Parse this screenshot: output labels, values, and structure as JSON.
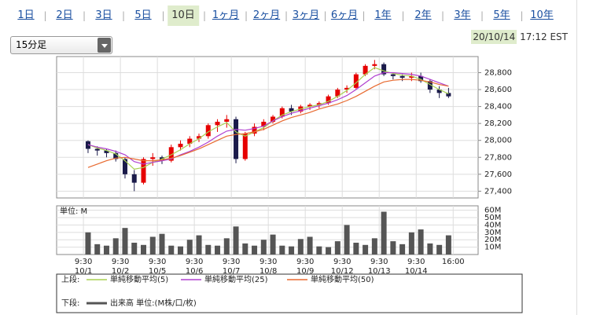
{
  "tabs": [
    "1日",
    "2日",
    "3日",
    "5日",
    "10日",
    "1ヶ月",
    "2ヶ月",
    "3ヶ月",
    "6ヶ月",
    "1年",
    "2年",
    "3年",
    "5年",
    "10年"
  ],
  "selected_tab": 4,
  "interval": "15分足",
  "timestamp_date": "20/10/14",
  "timestamp_time": "17:12 EST",
  "chart_data": [
    {
      "type": "candlestick",
      "ohlc": [
        [
          27990,
          28000,
          27850,
          27900
        ],
        [
          27900,
          27930,
          27820,
          27880
        ],
        [
          27880,
          27900,
          27800,
          27850
        ],
        [
          27850,
          27880,
          27750,
          27780
        ],
        [
          27780,
          27800,
          27550,
          27600
        ],
        [
          27600,
          27650,
          27400,
          27500
        ],
        [
          27500,
          27800,
          27480,
          27780
        ],
        [
          27780,
          27850,
          27700,
          27800
        ],
        [
          27800,
          27820,
          27720,
          27760
        ],
        [
          27760,
          27950,
          27740,
          27920
        ],
        [
          27920,
          28000,
          27880,
          27960
        ],
        [
          27960,
          28050,
          27920,
          28020
        ],
        [
          28020,
          28080,
          27980,
          28050
        ],
        [
          28050,
          28200,
          28020,
          28180
        ],
        [
          28180,
          28250,
          28100,
          28220
        ],
        [
          28220,
          28300,
          28150,
          28250
        ],
        [
          28250,
          28280,
          27730,
          27780
        ],
        [
          27780,
          28100,
          27760,
          28080
        ],
        [
          28080,
          28200,
          28050,
          28160
        ],
        [
          28160,
          28250,
          28120,
          28220
        ],
        [
          28220,
          28300,
          28200,
          28280
        ],
        [
          28280,
          28400,
          28260,
          28380
        ],
        [
          28380,
          28420,
          28300,
          28340
        ],
        [
          28340,
          28420,
          28320,
          28400
        ],
        [
          28400,
          28440,
          28360,
          28420
        ],
        [
          28420,
          28460,
          28380,
          28440
        ],
        [
          28440,
          28540,
          28420,
          28520
        ],
        [
          28520,
          28620,
          28500,
          28600
        ],
        [
          28600,
          28650,
          28560,
          28620
        ],
        [
          28620,
          28800,
          28600,
          28780
        ],
        [
          28780,
          28900,
          28760,
          28880
        ],
        [
          28880,
          28950,
          28840,
          28900
        ],
        [
          28900,
          28920,
          28760,
          28780
        ],
        [
          28780,
          28800,
          28720,
          28760
        ],
        [
          28760,
          28780,
          28700,
          28740
        ],
        [
          28740,
          28800,
          28700,
          28760
        ],
        [
          28760,
          28800,
          28680,
          28700
        ],
        [
          28700,
          28720,
          28560,
          28600
        ],
        [
          28600,
          28640,
          28500,
          28560
        ],
        [
          28560,
          28620,
          28500,
          28520
        ]
      ],
      "up_color": "#e60000",
      "down_color": "#1a1a4a",
      "series": [
        {
          "name": "単純移動平均(5)",
          "color": "#a8d050",
          "values": [
            27950,
            27910,
            27880,
            27840,
            27760,
            27660,
            27680,
            27740,
            27780,
            27830,
            27890,
            27960,
            28020,
            28100,
            28160,
            28210,
            28100,
            28050,
            28100,
            28150,
            28230,
            28300,
            28340,
            28370,
            28400,
            28420,
            28460,
            28520,
            28590,
            28680,
            28780,
            28860,
            28820,
            28790,
            28770,
            28760,
            28720,
            28660,
            28600,
            28550
          ]
        },
        {
          "name": "単純移動平均(25)",
          "color": "#b040d0",
          "values": [
            27950,
            27920,
            27900,
            27870,
            27830,
            27750,
            27720,
            27740,
            27760,
            27780,
            27830,
            27870,
            27920,
            27980,
            28050,
            28110,
            28130,
            28120,
            28140,
            28170,
            28230,
            28280,
            28320,
            28350,
            28380,
            28410,
            28440,
            28480,
            28530,
            28600,
            28680,
            28760,
            28800,
            28800,
            28790,
            28780,
            28760,
            28720,
            28680,
            28640
          ]
        },
        {
          "name": "単純移動平均(50)",
          "color": "#e86a30",
          "values": [
            27680,
            27720,
            27760,
            27790,
            27800,
            27780,
            27760,
            27760,
            27770,
            27790,
            27820,
            27860,
            27900,
            27950,
            28000,
            28050,
            28070,
            28080,
            28100,
            28130,
            28180,
            28230,
            28270,
            28300,
            28330,
            28370,
            28400,
            28430,
            28470,
            28520,
            28580,
            28640,
            28690,
            28710,
            28720,
            28720,
            28710,
            28690,
            28660,
            28640
          ]
        }
      ],
      "ylim": [
        27320,
        28990
      ],
      "yticks": [
        {
          "value": 27400,
          "label": "27,400"
        },
        {
          "value": 27600,
          "label": "27,600"
        },
        {
          "value": 27800,
          "label": "27,800"
        },
        {
          "value": 28000,
          "label": "28,000"
        },
        {
          "value": 28200,
          "label": "28,200"
        },
        {
          "value": 28400,
          "label": "28,400"
        },
        {
          "value": 28600,
          "label": "28,600"
        },
        {
          "value": 28800,
          "label": "28,800"
        }
      ],
      "xlim": [
        -2.9,
        42.7
      ],
      "xticks": [
        {
          "value": 0,
          "label": "9:30"
        },
        {
          "value": 4,
          "label": "9:30"
        },
        {
          "value": 8,
          "label": "9:30"
        },
        {
          "value": 12,
          "label": "9:30"
        },
        {
          "value": 16,
          "label": "9:30"
        },
        {
          "value": 20,
          "label": "9:30"
        },
        {
          "value": 24,
          "label": "9:30"
        },
        {
          "value": 28,
          "label": "9:30"
        },
        {
          "value": 32,
          "label": "9:30"
        },
        {
          "value": 36,
          "label": "9:30"
        },
        {
          "value": 40,
          "label": "16:00"
        }
      ],
      "xtick_dates": [
        "10/1",
        "10/2",
        "10/5",
        "10/6",
        "10/7",
        "10/8",
        "10/9",
        "10/12",
        "10/13",
        "10/14"
      ],
      "grid": true,
      "legend_title": "上段:"
    },
    {
      "type": "bar",
      "unit_label": "単位: M",
      "name": "出来高 単位:(M株/口/枚)",
      "color": "#555555",
      "values": [
        30,
        14,
        12,
        22,
        36,
        16,
        13,
        24,
        28,
        12,
        11,
        20,
        26,
        13,
        12,
        22,
        38,
        15,
        12,
        20,
        27,
        12,
        11,
        21,
        24,
        11,
        10,
        18,
        40,
        16,
        13,
        22,
        58,
        18,
        14,
        30,
        34,
        15,
        13,
        26
      ],
      "ylim": [
        0,
        66
      ],
      "yticks": [
        {
          "value": 10,
          "label": "10M"
        },
        {
          "value": 20,
          "label": "20M"
        },
        {
          "value": 30,
          "label": "30M"
        },
        {
          "value": 40,
          "label": "40M"
        },
        {
          "value": 50,
          "label": "50M"
        },
        {
          "value": 60,
          "label": "60M"
        }
      ],
      "legend_title": "下段:"
    }
  ]
}
